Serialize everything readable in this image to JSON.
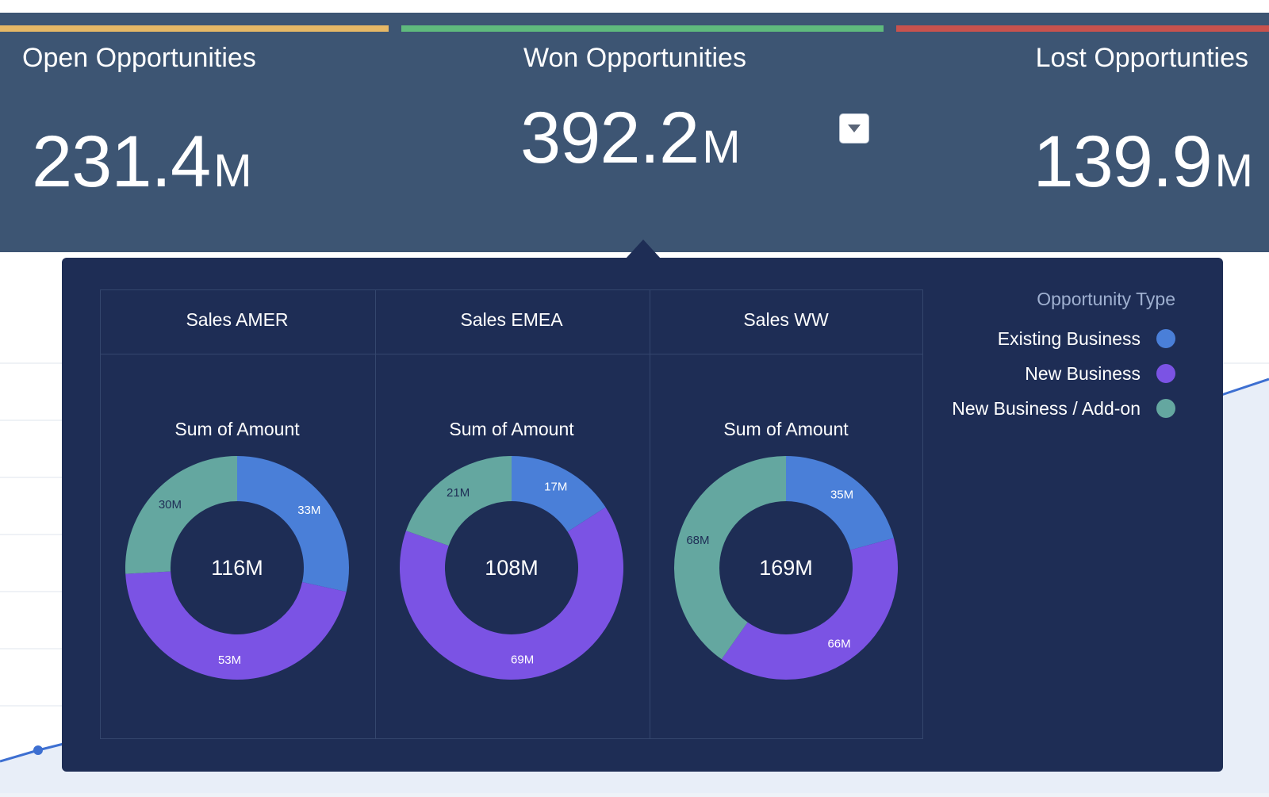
{
  "kpis": {
    "open": {
      "title": "Open Opportunities",
      "value": "231.4",
      "unit": "M",
      "accent": "#e6b866"
    },
    "won": {
      "title": "Won Opportunities",
      "value": "392.2",
      "unit": "M",
      "accent": "#5fba7d"
    },
    "lost": {
      "title": "Lost Opportunties",
      "value": "139.9",
      "unit": "M",
      "accent": "#c9524d"
    }
  },
  "legend": {
    "title": "Opportunity Type",
    "items": [
      {
        "label": "Existing Business",
        "color": "#4a7fd8"
      },
      {
        "label": "New Business",
        "color": "#7b53e4"
      },
      {
        "label": "New Business / Add-on",
        "color": "#64a7a0"
      }
    ]
  },
  "chart_data": [
    {
      "type": "pie",
      "title": "Sales AMER",
      "subtitle": "Sum of Amount",
      "total_label": "116M",
      "categories": [
        "Existing Business",
        "New Business",
        "New Business / Add-on"
      ],
      "values": [
        33,
        53,
        30
      ],
      "labels": [
        "33M",
        "53M",
        "30M"
      ],
      "colors": [
        "#4a7fd8",
        "#7b53e4",
        "#64a7a0"
      ]
    },
    {
      "type": "pie",
      "title": "Sales EMEA",
      "subtitle": "Sum of Amount",
      "total_label": "108M",
      "categories": [
        "Existing Business",
        "New Business",
        "New Business / Add-on"
      ],
      "values": [
        17,
        69,
        21
      ],
      "labels": [
        "17M",
        "69M",
        "21M"
      ],
      "colors": [
        "#4a7fd8",
        "#7b53e4",
        "#64a7a0"
      ]
    },
    {
      "type": "pie",
      "title": "Sales WW",
      "subtitle": "Sum of Amount",
      "total_label": "169M",
      "categories": [
        "Existing Business",
        "New Business",
        "New Business / Add-on"
      ],
      "values": [
        35,
        66,
        68
      ],
      "labels": [
        "35M",
        "66M",
        "68M"
      ],
      "colors": [
        "#4a7fd8",
        "#7b53e4",
        "#64a7a0"
      ]
    }
  ]
}
